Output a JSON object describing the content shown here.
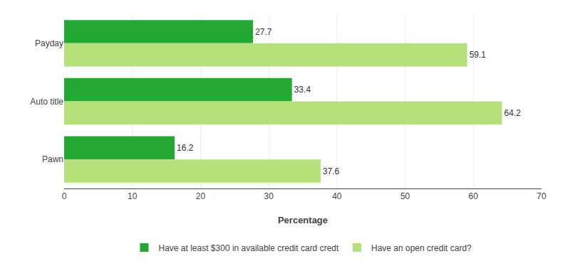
{
  "chart_data": {
    "type": "bar",
    "orientation": "horizontal",
    "categories": [
      "Payday",
      "Auto title",
      "Pawn"
    ],
    "series": [
      {
        "name": "Have at least $300 in available credit card credt",
        "color": "#22a833",
        "values": [
          27.7,
          33.4,
          16.2
        ]
      },
      {
        "name": "Have an open credit card?",
        "color": "#b5e07a",
        "values": [
          59.1,
          64.2,
          37.6
        ]
      }
    ],
    "xlabel": "Percentage",
    "xlim": [
      0,
      70
    ],
    "xticks": [
      0,
      10,
      20,
      30,
      40,
      50,
      60,
      70
    ],
    "grid": true,
    "legend": "bottom",
    "data_labels": true
  }
}
